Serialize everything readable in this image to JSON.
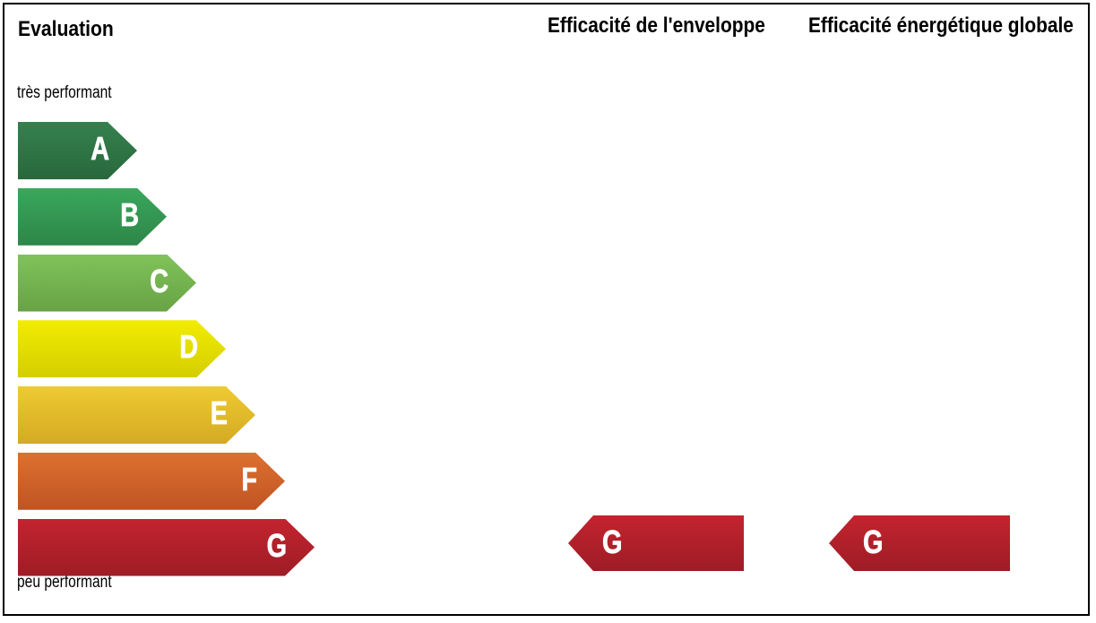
{
  "title": "Evaluation",
  "columns": [
    {
      "label": "Efficacité de l'enveloppe"
    },
    {
      "label": "Efficacité énergétique globale"
    }
  ],
  "scale": {
    "top_label": "très performant",
    "bottom_label": "peu performant",
    "bars": [
      {
        "letter": "A",
        "color_top": "#35814e",
        "color_bottom": "#29683c"
      },
      {
        "letter": "B",
        "color_top": "#3aa75c",
        "color_bottom": "#2d8648"
      },
      {
        "letter": "C",
        "color_top": "#80c35a",
        "color_bottom": "#68a244"
      },
      {
        "letter": "D",
        "color_top": "#f2ec00",
        "color_bottom": "#d5ce00"
      },
      {
        "letter": "E",
        "color_top": "#eecb31",
        "color_bottom": "#d4aa23"
      },
      {
        "letter": "F",
        "color_top": "#dd7130",
        "color_bottom": "#bf5423"
      },
      {
        "letter": "G",
        "color_top": "#c3242f",
        "color_bottom": "#9e1c25"
      }
    ]
  },
  "results": [
    {
      "column": "Efficacité de l'enveloppe",
      "letter": "G",
      "color_top": "#c3242f",
      "color_bottom": "#9e1c25"
    },
    {
      "column": "Efficacité énergétique globale",
      "letter": "G",
      "color_top": "#c3242f",
      "color_bottom": "#9e1c25"
    }
  ],
  "chart_data": {
    "type": "bar",
    "title": "Evaluation",
    "categories": [
      "A",
      "B",
      "C",
      "D",
      "E",
      "F",
      "G"
    ],
    "values": [
      133,
      166,
      199,
      232,
      265,
      298,
      331
    ],
    "bar_colors": [
      "#35814e",
      "#3aa75c",
      "#80c35a",
      "#f2ec00",
      "#eecb31",
      "#dd7130",
      "#c3242f"
    ],
    "series": [
      {
        "name": "Efficacité de l'enveloppe",
        "rating": "G"
      },
      {
        "name": "Efficacité énergétique globale",
        "rating": "G"
      }
    ],
    "annotations": [
      "très performant",
      "peu performant"
    ],
    "legend": "none",
    "grid": false
  }
}
